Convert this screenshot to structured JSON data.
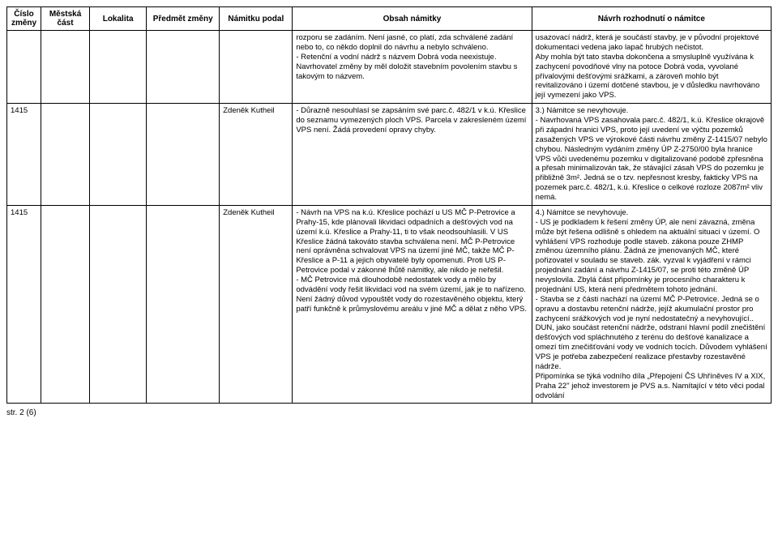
{
  "headers": {
    "cislo": "Číslo změny",
    "mestska": "Městská část",
    "lokalita": "Lokalita",
    "predmet": "Předmět změny",
    "namitku": "Námitku podal",
    "obsah": "Obsah námitky",
    "navrh": "Návrh rozhodnutí o námitce"
  },
  "rows": [
    {
      "cislo": "",
      "mestska": "",
      "lokalita": "",
      "predmet": "",
      "namitku": "",
      "obsah": "rozporu se zadáním. Není jasné, co platí, zda schválené zadání nebo to, co někdo doplnil do návrhu a nebylo schváleno.\n- Retenční a vodní nádrž s názvem Dobrá voda neexistuje. Navrhovatel změny by měl doložit stavebním povolením stavbu s takovým to názvem.",
      "navrh": "usazovací nádrž, která je součástí stavby, je v původní projektové dokumentaci vedena jako lapač hrubých nečistot.\nAby mohla být tato stavba dokončena a smysluplně využívána k zachycení povodňové vlny na potoce Dobrá voda, vyvolané přívalovými dešťovými srážkami, a zároveň mohlo být revitalizováno i území dotčené stavbou, je v důsledku navrhováno její vymezení jako VPS."
    },
    {
      "cislo": "1415",
      "mestska": "",
      "lokalita": "",
      "predmet": "",
      "namitku": "Zdeněk Kutheil",
      "obsah": "- Důrazně nesouhlasí se zapsáním své parc.č. 482/1 v k.ú. Křeslice do seznamu vymezených ploch VPS. Parcela v zakresleném území VPS není. Žádá provedení opravy chyby.",
      "navrh": "3.) Námitce se nevyhovuje.\n- Navrhovaná VPS zasahovala parc.č. 482/1, k.ú. Křeslice okrajově při západní hranici VPS, proto její uvedení ve výčtu pozemků zasažených VPS ve výrokové části návrhu změny Z-1415/07 nebylo chybou. Následným vydáním změny ÚP Z-2750/00 byla hranice VPS vůči uvedenému pozemku v digitalizované podobě zpřesněna a přesah minimalizován tak, že stávající zásah VPS do pozemku je přibližně 3m². Jedná se o tzv. nepřesnost kresby, fakticky VPS na pozemek parc.č. 482/1, k.ú. Křeslice o celkové rozloze 2087m² vliv nemá."
    },
    {
      "cislo": "1415",
      "mestska": "",
      "lokalita": "",
      "predmet": "",
      "namitku": "Zdeněk Kutheil",
      "obsah": "- Návrh na VPS na k.ú. Křeslice pochází u US MČ P-Petrovice a Prahy-15, kde plánovali likvidaci odpadních a dešťových vod na území k.ú. Křeslice a Prahy-11, ti to však neodsouhlasili. V US Křeslice žádná takováto stavba schválena není. MČ P-Petrovice není oprávněna schvalovat VPS na území jiné MČ, takže MČ P-Křeslice a P-11 a jejich obyvatelé byly opomenuti. Proti US P-Petrovice podal v zákonné lhůtě námitky, ale nikdo je neřešil.\n- MČ Petrovice má dlouhodobě nedostatek vody a mělo by odvádění vody řešit likvidaci vod na svém území, jak je to nařízeno. Není žádný důvod vypouštět vody do rozestavěného objektu, který patří funkčně k průmyslovému areálu v jiné MČ a dělat z něho VPS.",
      "navrh": "4.) Námitce se nevyhovuje.\n- US je podkladem k řešení změny ÚP, ale není závazná, změna může být řešena odlišně s ohledem na aktuální situaci v území. O vyhlášení VPS rozhoduje podle staveb. zákona pouze ZHMP změnou územního plánu. Žádná ze jmenovaných MČ, které pořizovatel v souladu se staveb. zák. vyzval k vyjádření v rámci projednání zadání a návrhu Z-1415/07, se proti této změně ÚP nevyslovila. Zbylá část připomínky je procesního charakteru k projednání US, která není předmětem tohoto jednání.\n- Stavba se z části nachází na území MČ P-Petrovice. Jedná se o opravu a dostavbu retenční nádrže, jejíž akumulační prostor pro zachycení srážkových vod je nyní nedostatečný a nevyhovující.. DUN, jako součást retenční nádrže, odstraní hlavní podíl znečištění dešťových vod spláchnutého z terénu do dešťové kanalizace a omezí tím znečišťování vody ve vodních tocích. Důvodem vyhlášení VPS je potřeba zabezpečení realizace přestavby rozestavěné nádrže.\nPřipomínka se týká vodního díla „Přepojení ČS Uhříněves IV a XIX, Praha 22\" jehož investorem je PVS a.s. Namítající v této věci podal odvolání"
    }
  ],
  "footer": "str. 2 (6)"
}
